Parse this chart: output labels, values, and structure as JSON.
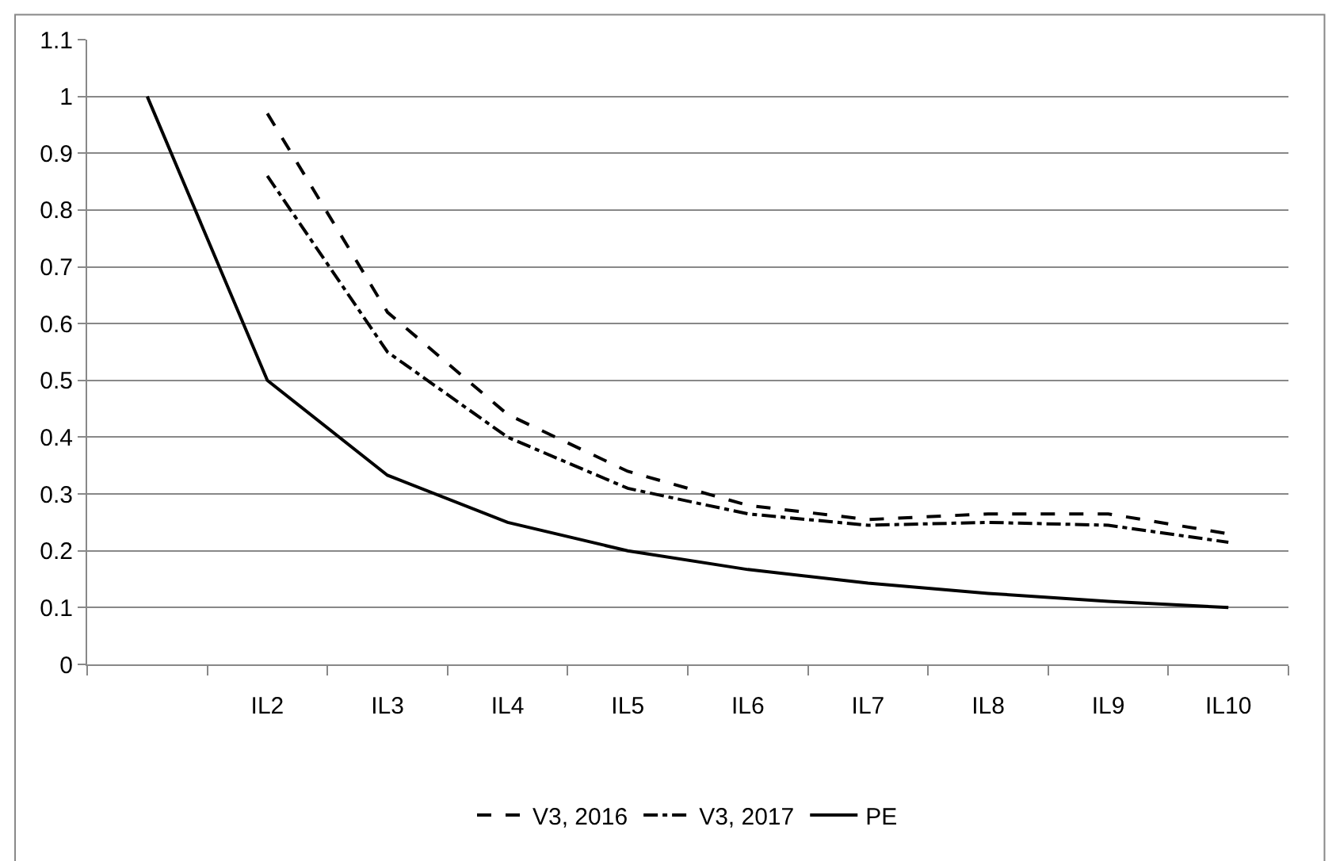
{
  "chart_data": {
    "type": "line",
    "categories": [
      null,
      "IL2",
      "IL3",
      "IL4",
      "IL5",
      "IL6",
      "IL7",
      "IL8",
      "IL9",
      "IL10"
    ],
    "series": [
      {
        "name": "V3, 2016",
        "color": "#000000",
        "line_style": "dashed",
        "values": [
          null,
          0.97,
          0.62,
          0.44,
          0.34,
          0.28,
          0.255,
          0.265,
          0.265,
          0.23
        ]
      },
      {
        "name": "V3, 2017",
        "color": "#000000",
        "line_style": "dashdot",
        "values": [
          null,
          0.86,
          0.55,
          0.4,
          0.31,
          0.265,
          0.245,
          0.25,
          0.245,
          0.215
        ]
      },
      {
        "name": "PE",
        "color": "#000000",
        "line_style": "solid",
        "values": [
          1,
          0.5,
          0.333,
          0.25,
          0.2,
          0.167,
          0.143,
          0.125,
          0.111,
          0.1
        ]
      }
    ],
    "ylim": [
      0,
      1.1
    ],
    "yticks": [
      0,
      0.1,
      0.2,
      0.3,
      0.4,
      0.5,
      0.6,
      0.7,
      0.8,
      0.9,
      1,
      1.1
    ],
    "grid": "y",
    "legend": "bottom",
    "marker": "none"
  }
}
